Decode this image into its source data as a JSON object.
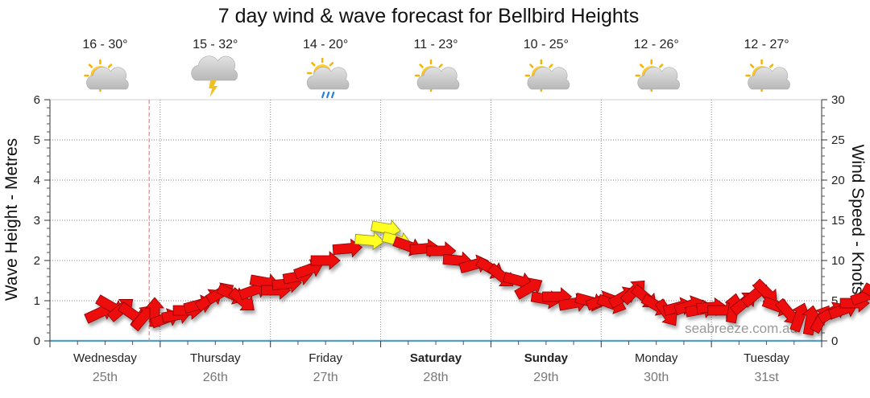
{
  "chart_data": {
    "type": "scatter",
    "title": "7 day wind & wave forecast for Bellbird Heights",
    "ylabel": "Wave Height - Metres",
    "y2label": "Wind Speed - Knots",
    "ylim": [
      0,
      6
    ],
    "y2lim": [
      0,
      30
    ],
    "yticks": [
      "0",
      "1",
      "2",
      "3",
      "4",
      "5",
      "6"
    ],
    "y2ticks": [
      "0",
      "5",
      "10",
      "15",
      "20",
      "25",
      "30"
    ],
    "watermark": "seabreeze.com.au",
    "colors": {
      "wind_normal": "#ee1111",
      "wind_strong": "#ffff22",
      "gridline": "#888888",
      "now_line": "#f08080"
    },
    "days": [
      {
        "name": "Wednesday",
        "date": "25th",
        "temp": "16 - 30°",
        "icon": "partly-cloudy-icon",
        "bold": false
      },
      {
        "name": "Thursday",
        "date": "26th",
        "temp": "15 - 32°",
        "icon": "thunderstorm-icon",
        "bold": false
      },
      {
        "name": "Friday",
        "date": "27th",
        "temp": "14 - 20°",
        "icon": "rain-shower-icon",
        "bold": false
      },
      {
        "name": "Saturday",
        "date": "28th",
        "temp": "11 - 23°",
        "icon": "partly-cloudy-icon",
        "bold": true
      },
      {
        "name": "Sunday",
        "date": "29th",
        "temp": "10 - 25°",
        "icon": "partly-cloudy-icon",
        "bold": true
      },
      {
        "name": "Monday",
        "date": "30th",
        "temp": "12 - 26°",
        "icon": "partly-cloudy-icon",
        "bold": false
      },
      {
        "name": "Tuesday",
        "date": "31st",
        "temp": "12 - 27°",
        "icon": "partly-cloudy-icon",
        "bold": false
      }
    ],
    "now_day": 0.9,
    "wind_series": {
      "name": "Wind",
      "points": [
        {
          "d": 0.45,
          "k": 3.5,
          "dir": -25
        },
        {
          "d": 0.55,
          "k": 4.3,
          "dir": 30
        },
        {
          "d": 0.65,
          "k": 4.0,
          "dir": -40
        },
        {
          "d": 0.75,
          "k": 3.3,
          "dir": 35
        },
        {
          "d": 0.85,
          "k": 3.0,
          "dir": -50
        },
        {
          "d": 0.95,
          "k": 3.6,
          "dir": -90
        },
        {
          "d": 1.05,
          "k": 2.8,
          "dir": -20
        },
        {
          "d": 1.15,
          "k": 3.2,
          "dir": -10
        },
        {
          "d": 1.25,
          "k": 3.8,
          "dir": 0
        },
        {
          "d": 1.35,
          "k": 4.5,
          "dir": -15
        },
        {
          "d": 1.45,
          "k": 5.2,
          "dir": -35
        },
        {
          "d": 1.55,
          "k": 6.0,
          "dir": -30
        },
        {
          "d": 1.65,
          "k": 5.8,
          "dir": 25
        },
        {
          "d": 1.75,
          "k": 5.0,
          "dir": 40
        },
        {
          "d": 1.85,
          "k": 6.3,
          "dir": -20
        },
        {
          "d": 1.95,
          "k": 7.3,
          "dir": 10
        },
        {
          "d": 2.05,
          "k": 6.3,
          "dir": 0
        },
        {
          "d": 2.15,
          "k": 7.1,
          "dir": -5
        },
        {
          "d": 2.25,
          "k": 8.0,
          "dir": -10
        },
        {
          "d": 2.35,
          "k": 8.9,
          "dir": -20
        },
        {
          "d": 2.5,
          "k": 10.0,
          "dir": 0
        },
        {
          "d": 2.7,
          "k": 11.5,
          "dir": -5
        },
        {
          "d": 2.9,
          "k": 12.5,
          "dir": 5
        },
        {
          "d": 3.05,
          "k": 14.0,
          "dir": 10
        },
        {
          "d": 3.15,
          "k": 12.5,
          "dir": 15
        },
        {
          "d": 3.25,
          "k": 11.8,
          "dir": 20
        },
        {
          "d": 3.4,
          "k": 11.5,
          "dir": -5
        },
        {
          "d": 3.55,
          "k": 11.2,
          "dir": 0
        },
        {
          "d": 3.7,
          "k": 10.0,
          "dir": 5
        },
        {
          "d": 3.85,
          "k": 9.5,
          "dir": -15
        },
        {
          "d": 4.0,
          "k": 9.0,
          "dir": 30
        },
        {
          "d": 4.1,
          "k": 8.0,
          "dir": 40
        },
        {
          "d": 4.25,
          "k": 7.5,
          "dir": 15
        },
        {
          "d": 4.35,
          "k": 6.6,
          "dir": -30
        },
        {
          "d": 4.5,
          "k": 5.2,
          "dir": 10
        },
        {
          "d": 4.6,
          "k": 5.5,
          "dir": 0
        },
        {
          "d": 4.75,
          "k": 4.7,
          "dir": -10
        },
        {
          "d": 4.9,
          "k": 4.9,
          "dir": 15
        },
        {
          "d": 5.0,
          "k": 5.0,
          "dir": -20
        },
        {
          "d": 5.1,
          "k": 4.6,
          "dir": 20
        },
        {
          "d": 5.2,
          "k": 5.5,
          "dir": -30
        },
        {
          "d": 5.3,
          "k": 6.2,
          "dir": -45
        },
        {
          "d": 5.4,
          "k": 5.4,
          "dir": 40
        },
        {
          "d": 5.5,
          "k": 4.4,
          "dir": 30
        },
        {
          "d": 5.6,
          "k": 3.4,
          "dir": 55
        },
        {
          "d": 5.7,
          "k": 4.2,
          "dir": -15
        },
        {
          "d": 5.8,
          "k": 4.4,
          "dir": -20
        },
        {
          "d": 5.9,
          "k": 3.9,
          "dir": -10
        },
        {
          "d": 6.0,
          "k": 4.2,
          "dir": -5
        },
        {
          "d": 6.1,
          "k": 3.8,
          "dir": 0
        },
        {
          "d": 6.2,
          "k": 4.1,
          "dir": -80
        },
        {
          "d": 6.3,
          "k": 4.8,
          "dir": -40
        },
        {
          "d": 6.4,
          "k": 5.8,
          "dir": -40
        },
        {
          "d": 6.5,
          "k": 6.0,
          "dir": 45
        },
        {
          "d": 6.6,
          "k": 4.3,
          "dir": 20
        },
        {
          "d": 6.7,
          "k": 3.5,
          "dir": 50
        },
        {
          "d": 6.8,
          "k": 3.0,
          "dir": -70
        },
        {
          "d": 6.9,
          "k": 2.6,
          "dir": -80
        },
        {
          "d": 7.0,
          "k": 2.8,
          "dir": -60
        },
        {
          "d": 7.1,
          "k": 3.6,
          "dir": -30
        },
        {
          "d": 7.2,
          "k": 3.9,
          "dir": -20
        },
        {
          "d": 7.3,
          "k": 4.7,
          "dir": 0
        },
        {
          "d": 7.4,
          "k": 5.6,
          "dir": -20
        },
        {
          "d": 7.5,
          "k": 5.8,
          "dir": 30
        },
        {
          "d": 7.6,
          "k": 5.4,
          "dir": 40
        },
        {
          "d": 7.7,
          "k": 4.2,
          "dir": 25
        },
        {
          "d": 7.8,
          "k": 3.8,
          "dir": 20
        },
        {
          "d": 7.9,
          "k": 3.6,
          "dir": 15
        }
      ]
    }
  }
}
